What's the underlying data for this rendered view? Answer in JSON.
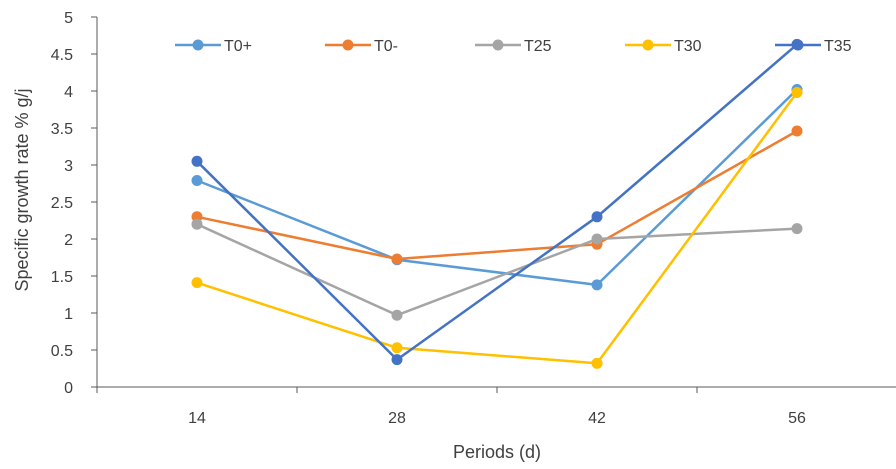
{
  "chart_data": {
    "type": "line",
    "xlabel": "Periods (d)",
    "ylabel": "Specific growth rate % g/j",
    "categories": [
      "14",
      "28",
      "42",
      "56"
    ],
    "ylim": [
      0,
      5
    ],
    "yticks": [
      "0",
      "0.5",
      "1",
      "1.5",
      "2",
      "2.5",
      "3",
      "3.5",
      "4",
      "4.5",
      "5"
    ],
    "grid": false,
    "legend_position": "top",
    "series": [
      {
        "name": "T0+",
        "color": "#5B9BD5",
        "values": [
          2.79,
          1.72,
          1.38,
          4.02
        ]
      },
      {
        "name": "T0-",
        "color": "#ED7D31",
        "values": [
          2.3,
          1.73,
          1.93,
          3.46
        ]
      },
      {
        "name": "T25",
        "color": "#A5A5A5",
        "values": [
          2.2,
          0.97,
          2.0,
          2.14
        ]
      },
      {
        "name": "T30",
        "color": "#FFC000",
        "values": [
          1.41,
          0.53,
          0.32,
          3.98
        ]
      },
      {
        "name": "T35",
        "color": "#4472C4",
        "values": [
          3.05,
          0.37,
          2.3,
          4.63
        ]
      }
    ]
  }
}
